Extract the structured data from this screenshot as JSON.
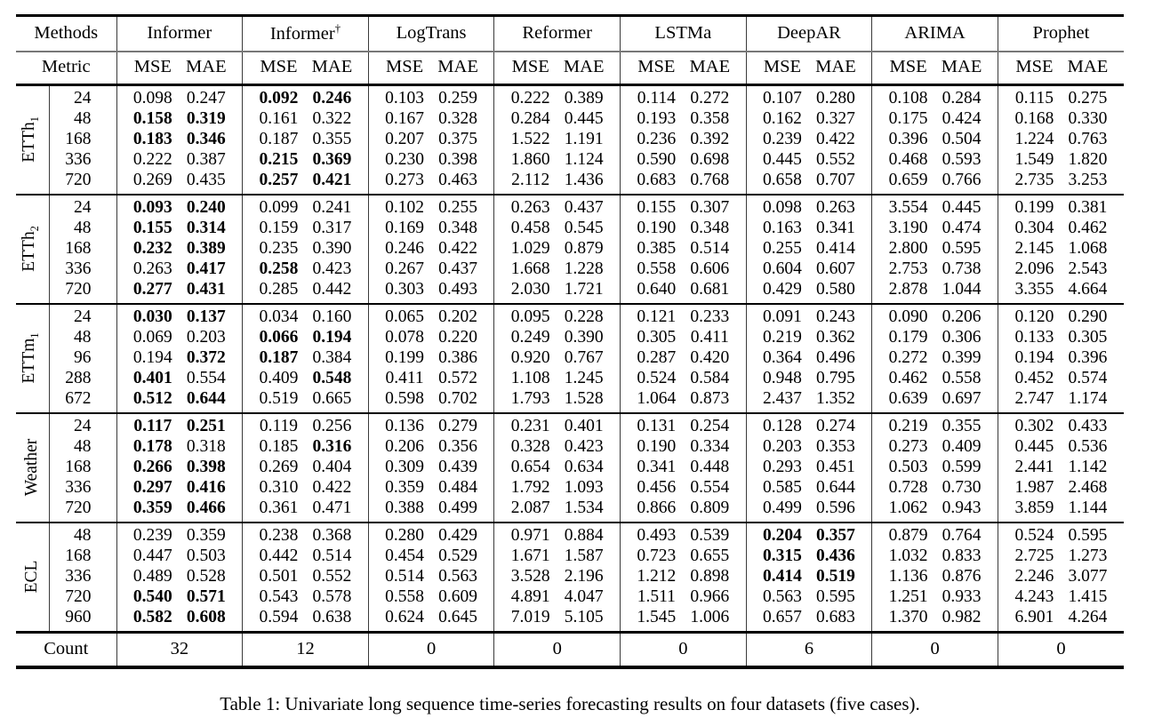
{
  "caption": "Table 1: Univariate long sequence time-series forecasting results on four datasets (five cases).",
  "table": {
    "methods_label": "Methods",
    "metric_label": "Metric",
    "count_label": "Count",
    "metrics": [
      "MSE",
      "MAE"
    ],
    "methods": [
      {
        "label": "Informer",
        "sup": ""
      },
      {
        "label": "Informer",
        "sup": "†"
      },
      {
        "label": "LogTrans",
        "sup": ""
      },
      {
        "label": "Reformer",
        "sup": ""
      },
      {
        "label": "LSTMa",
        "sup": ""
      },
      {
        "label": "DeepAR",
        "sup": ""
      },
      {
        "label": "ARIMA",
        "sup": ""
      },
      {
        "label": "Prophet",
        "sup": ""
      }
    ],
    "groups": [
      {
        "label": "ETTh",
        "sub": "1",
        "rows": [
          {
            "h": "24",
            "vals": [
              "0.098",
              "0.247",
              "0.092",
              "0.246",
              "0.103",
              "0.259",
              "0.222",
              "0.389",
              "0.114",
              "0.272",
              "0.107",
              "0.280",
              "0.108",
              "0.284",
              "0.115",
              "0.275"
            ],
            "bold": [
              2,
              3
            ]
          },
          {
            "h": "48",
            "vals": [
              "0.158",
              "0.319",
              "0.161",
              "0.322",
              "0.167",
              "0.328",
              "0.284",
              "0.445",
              "0.193",
              "0.358",
              "0.162",
              "0.327",
              "0.175",
              "0.424",
              "0.168",
              "0.330"
            ],
            "bold": [
              0,
              1
            ]
          },
          {
            "h": "168",
            "vals": [
              "0.183",
              "0.346",
              "0.187",
              "0.355",
              "0.207",
              "0.375",
              "1.522",
              "1.191",
              "0.236",
              "0.392",
              "0.239",
              "0.422",
              "0.396",
              "0.504",
              "1.224",
              "0.763"
            ],
            "bold": [
              0,
              1
            ]
          },
          {
            "h": "336",
            "vals": [
              "0.222",
              "0.387",
              "0.215",
              "0.369",
              "0.230",
              "0.398",
              "1.860",
              "1.124",
              "0.590",
              "0.698",
              "0.445",
              "0.552",
              "0.468",
              "0.593",
              "1.549",
              "1.820"
            ],
            "bold": [
              2,
              3
            ]
          },
          {
            "h": "720",
            "vals": [
              "0.269",
              "0.435",
              "0.257",
              "0.421",
              "0.273",
              "0.463",
              "2.112",
              "1.436",
              "0.683",
              "0.768",
              "0.658",
              "0.707",
              "0.659",
              "0.766",
              "2.735",
              "3.253"
            ],
            "bold": [
              2,
              3
            ]
          }
        ]
      },
      {
        "label": "ETTh",
        "sub": "2",
        "rows": [
          {
            "h": "24",
            "vals": [
              "0.093",
              "0.240",
              "0.099",
              "0.241",
              "0.102",
              "0.255",
              "0.263",
              "0.437",
              "0.155",
              "0.307",
              "0.098",
              "0.263",
              "3.554",
              "0.445",
              "0.199",
              "0.381"
            ],
            "bold": [
              0,
              1
            ]
          },
          {
            "h": "48",
            "vals": [
              "0.155",
              "0.314",
              "0.159",
              "0.317",
              "0.169",
              "0.348",
              "0.458",
              "0.545",
              "0.190",
              "0.348",
              "0.163",
              "0.341",
              "3.190",
              "0.474",
              "0.304",
              "0.462"
            ],
            "bold": [
              0,
              1
            ]
          },
          {
            "h": "168",
            "vals": [
              "0.232",
              "0.389",
              "0.235",
              "0.390",
              "0.246",
              "0.422",
              "1.029",
              "0.879",
              "0.385",
              "0.514",
              "0.255",
              "0.414",
              "2.800",
              "0.595",
              "2.145",
              "1.068"
            ],
            "bold": [
              0,
              1
            ]
          },
          {
            "h": "336",
            "vals": [
              "0.263",
              "0.417",
              "0.258",
              "0.423",
              "0.267",
              "0.437",
              "1.668",
              "1.228",
              "0.558",
              "0.606",
              "0.604",
              "0.607",
              "2.753",
              "0.738",
              "2.096",
              "2.543"
            ],
            "bold": [
              1,
              2
            ]
          },
          {
            "h": "720",
            "vals": [
              "0.277",
              "0.431",
              "0.285",
              "0.442",
              "0.303",
              "0.493",
              "2.030",
              "1.721",
              "0.640",
              "0.681",
              "0.429",
              "0.580",
              "2.878",
              "1.044",
              "3.355",
              "4.664"
            ],
            "bold": [
              0,
              1
            ]
          }
        ]
      },
      {
        "label": "ETTm",
        "sub": "1",
        "rows": [
          {
            "h": "24",
            "vals": [
              "0.030",
              "0.137",
              "0.034",
              "0.160",
              "0.065",
              "0.202",
              "0.095",
              "0.228",
              "0.121",
              "0.233",
              "0.091",
              "0.243",
              "0.090",
              "0.206",
              "0.120",
              "0.290"
            ],
            "bold": [
              0,
              1
            ]
          },
          {
            "h": "48",
            "vals": [
              "0.069",
              "0.203",
              "0.066",
              "0.194",
              "0.078",
              "0.220",
              "0.249",
              "0.390",
              "0.305",
              "0.411",
              "0.219",
              "0.362",
              "0.179",
              "0.306",
              "0.133",
              "0.305"
            ],
            "bold": [
              2,
              3
            ]
          },
          {
            "h": "96",
            "vals": [
              "0.194",
              "0.372",
              "0.187",
              "0.384",
              "0.199",
              "0.386",
              "0.920",
              "0.767",
              "0.287",
              "0.420",
              "0.364",
              "0.496",
              "0.272",
              "0.399",
              "0.194",
              "0.396"
            ],
            "bold": [
              1,
              2
            ]
          },
          {
            "h": "288",
            "vals": [
              "0.401",
              "0.554",
              "0.409",
              "0.548",
              "0.411",
              "0.572",
              "1.108",
              "1.245",
              "0.524",
              "0.584",
              "0.948",
              "0.795",
              "0.462",
              "0.558",
              "0.452",
              "0.574"
            ],
            "bold": [
              0,
              3
            ]
          },
          {
            "h": "672",
            "vals": [
              "0.512",
              "0.644",
              "0.519",
              "0.665",
              "0.598",
              "0.702",
              "1.793",
              "1.528",
              "1.064",
              "0.873",
              "2.437",
              "1.352",
              "0.639",
              "0.697",
              "2.747",
              "1.174"
            ],
            "bold": [
              0,
              1
            ]
          }
        ]
      },
      {
        "label": "Weather",
        "sub": "",
        "rows": [
          {
            "h": "24",
            "vals": [
              "0.117",
              "0.251",
              "0.119",
              "0.256",
              "0.136",
              "0.279",
              "0.231",
              "0.401",
              "0.131",
              "0.254",
              "0.128",
              "0.274",
              "0.219",
              "0.355",
              "0.302",
              "0.433"
            ],
            "bold": [
              0,
              1
            ]
          },
          {
            "h": "48",
            "vals": [
              "0.178",
              "0.318",
              "0.185",
              "0.316",
              "0.206",
              "0.356",
              "0.328",
              "0.423",
              "0.190",
              "0.334",
              "0.203",
              "0.353",
              "0.273",
              "0.409",
              "0.445",
              "0.536"
            ],
            "bold": [
              0,
              3
            ]
          },
          {
            "h": "168",
            "vals": [
              "0.266",
              "0.398",
              "0.269",
              "0.404",
              "0.309",
              "0.439",
              "0.654",
              "0.634",
              "0.341",
              "0.448",
              "0.293",
              "0.451",
              "0.503",
              "0.599",
              "2.441",
              "1.142"
            ],
            "bold": [
              0,
              1
            ]
          },
          {
            "h": "336",
            "vals": [
              "0.297",
              "0.416",
              "0.310",
              "0.422",
              "0.359",
              "0.484",
              "1.792",
              "1.093",
              "0.456",
              "0.554",
              "0.585",
              "0.644",
              "0.728",
              "0.730",
              "1.987",
              "2.468"
            ],
            "bold": [
              0,
              1
            ]
          },
          {
            "h": "720",
            "vals": [
              "0.359",
              "0.466",
              "0.361",
              "0.471",
              "0.388",
              "0.499",
              "2.087",
              "1.534",
              "0.866",
              "0.809",
              "0.499",
              "0.596",
              "1.062",
              "0.943",
              "3.859",
              "1.144"
            ],
            "bold": [
              0,
              1
            ]
          }
        ]
      },
      {
        "label": "ECL",
        "sub": "",
        "rows": [
          {
            "h": "48",
            "vals": [
              "0.239",
              "0.359",
              "0.238",
              "0.368",
              "0.280",
              "0.429",
              "0.971",
              "0.884",
              "0.493",
              "0.539",
              "0.204",
              "0.357",
              "0.879",
              "0.764",
              "0.524",
              "0.595"
            ],
            "bold": [
              10,
              11
            ]
          },
          {
            "h": "168",
            "vals": [
              "0.447",
              "0.503",
              "0.442",
              "0.514",
              "0.454",
              "0.529",
              "1.671",
              "1.587",
              "0.723",
              "0.655",
              "0.315",
              "0.436",
              "1.032",
              "0.833",
              "2.725",
              "1.273"
            ],
            "bold": [
              10,
              11
            ]
          },
          {
            "h": "336",
            "vals": [
              "0.489",
              "0.528",
              "0.501",
              "0.552",
              "0.514",
              "0.563",
              "3.528",
              "2.196",
              "1.212",
              "0.898",
              "0.414",
              "0.519",
              "1.136",
              "0.876",
              "2.246",
              "3.077"
            ],
            "bold": [
              10,
              11
            ]
          },
          {
            "h": "720",
            "vals": [
              "0.540",
              "0.571",
              "0.543",
              "0.578",
              "0.558",
              "0.609",
              "4.891",
              "4.047",
              "1.511",
              "0.966",
              "0.563",
              "0.595",
              "1.251",
              "0.933",
              "4.243",
              "1.415"
            ],
            "bold": [
              0,
              1
            ]
          },
          {
            "h": "960",
            "vals": [
              "0.582",
              "0.608",
              "0.594",
              "0.638",
              "0.624",
              "0.645",
              "7.019",
              "5.105",
              "1.545",
              "1.006",
              "0.657",
              "0.683",
              "1.370",
              "0.982",
              "6.901",
              "4.264"
            ],
            "bold": [
              0,
              1
            ]
          }
        ]
      }
    ],
    "counts": [
      "32",
      "12",
      "0",
      "0",
      "0",
      "6",
      "0",
      "0"
    ]
  }
}
